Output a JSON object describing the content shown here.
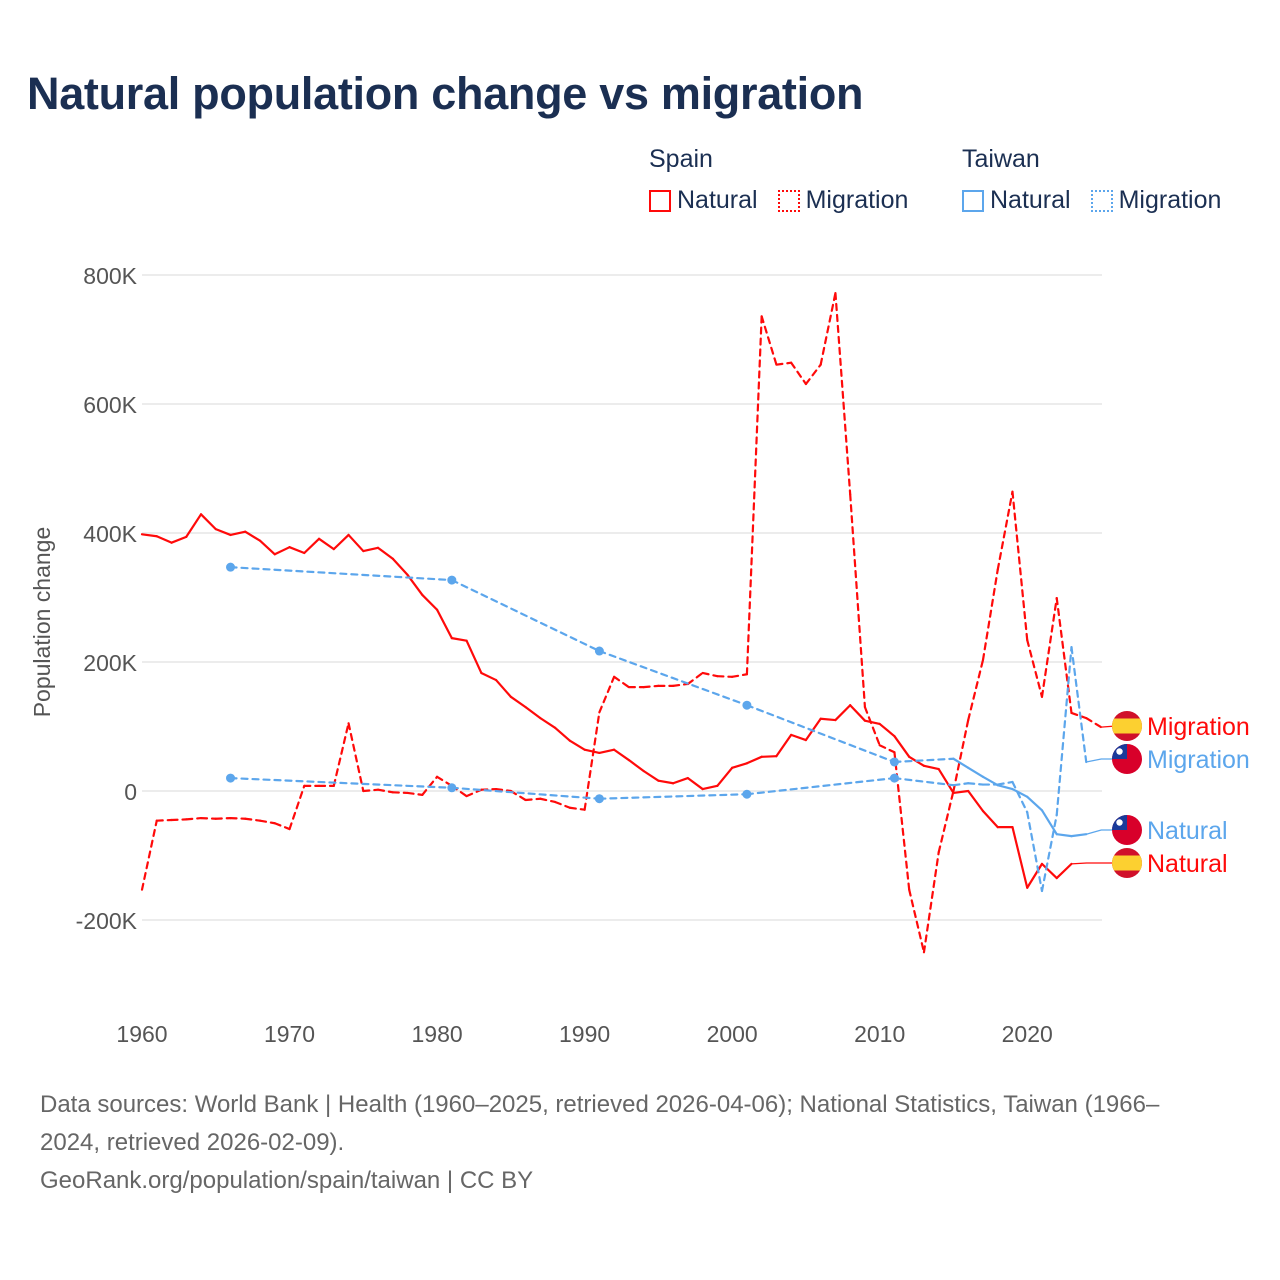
{
  "title": "Natural population change vs migration",
  "colors": {
    "spain": "#ff0a0a",
    "taiwan": "#5ca6ec",
    "title": "#1b2f52",
    "grid": "#e6e6e6",
    "axis_text": "#555555"
  },
  "legend": [
    {
      "group": "Spain",
      "color_key": "spain",
      "items": [
        {
          "label": "Natural",
          "style": "solid"
        },
        {
          "label": "Migration",
          "style": "dotted"
        }
      ]
    },
    {
      "group": "Taiwan",
      "color_key": "taiwan",
      "items": [
        {
          "label": "Natural",
          "style": "solid"
        },
        {
          "label": "Migration",
          "style": "dotted"
        }
      ]
    }
  ],
  "chart_data": {
    "type": "line",
    "title": "Natural population change vs migration",
    "xlabel": "",
    "ylabel": "Population change",
    "xlim": [
      1960,
      2025
    ],
    "ylim": [
      -300000,
      800000
    ],
    "x_ticks": [
      1960,
      1970,
      1980,
      1990,
      2000,
      2010,
      2020
    ],
    "x_tick_labels": [
      "1960",
      "1970",
      "1980",
      "1990",
      "2000",
      "2010",
      "2020"
    ],
    "y_ticks": [
      -200000,
      0,
      200000,
      400000,
      600000,
      800000
    ],
    "y_tick_labels": [
      "-200K",
      "0",
      "200K",
      "400K",
      "600K",
      "800K"
    ],
    "grid": true,
    "series": [
      {
        "name": "Spain Natural",
        "country": "Spain",
        "label": "Natural",
        "color_key": "spain",
        "dash": false,
        "flag": "spain",
        "points": [
          [
            1960,
            398000
          ],
          [
            1961,
            395000
          ],
          [
            1962,
            385000
          ],
          [
            1963,
            394000
          ],
          [
            1964,
            429000
          ],
          [
            1965,
            406000
          ],
          [
            1966,
            397000
          ],
          [
            1967,
            402000
          ],
          [
            1968,
            388000
          ],
          [
            1969,
            367000
          ],
          [
            1970,
            378000
          ],
          [
            1971,
            369000
          ],
          [
            1972,
            391000
          ],
          [
            1973,
            375000
          ],
          [
            1974,
            397000
          ],
          [
            1975,
            372000
          ],
          [
            1976,
            377000
          ],
          [
            1977,
            360000
          ],
          [
            1978,
            335000
          ],
          [
            1979,
            304000
          ],
          [
            1980,
            281000
          ],
          [
            1981,
            237000
          ],
          [
            1982,
            233000
          ],
          [
            1983,
            183000
          ],
          [
            1984,
            172000
          ],
          [
            1985,
            146000
          ],
          [
            1986,
            130000
          ],
          [
            1987,
            113000
          ],
          [
            1988,
            98000
          ],
          [
            1989,
            78000
          ],
          [
            1990,
            64000
          ],
          [
            1991,
            59000
          ],
          [
            1992,
            64000
          ],
          [
            1993,
            48000
          ],
          [
            1994,
            31000
          ],
          [
            1995,
            16000
          ],
          [
            1996,
            12000
          ],
          [
            1997,
            20000
          ],
          [
            1998,
            3000
          ],
          [
            1999,
            8000
          ],
          [
            2000,
            36000
          ],
          [
            2001,
            43000
          ],
          [
            2002,
            53000
          ],
          [
            2003,
            54000
          ],
          [
            2004,
            87000
          ],
          [
            2005,
            79000
          ],
          [
            2006,
            112000
          ],
          [
            2007,
            110000
          ],
          [
            2008,
            133000
          ],
          [
            2009,
            109000
          ],
          [
            2010,
            104000
          ],
          [
            2011,
            85000
          ],
          [
            2012,
            53000
          ],
          [
            2013,
            39000
          ],
          [
            2014,
            34000
          ],
          [
            2015,
            -3000
          ],
          [
            2016,
            0
          ],
          [
            2017,
            -31000
          ],
          [
            2018,
            -56000
          ],
          [
            2019,
            -56000
          ],
          [
            2020,
            -150000
          ],
          [
            2021,
            -113000
          ],
          [
            2022,
            -135000
          ],
          [
            2023,
            -113000
          ]
        ]
      },
      {
        "name": "Spain Migration",
        "country": "Spain",
        "label": "Migration",
        "color_key": "spain",
        "dash": true,
        "flag": "spain",
        "points": [
          [
            1960,
            -153000
          ],
          [
            1961,
            -46000
          ],
          [
            1962,
            -45000
          ],
          [
            1963,
            -44000
          ],
          [
            1964,
            -42000
          ],
          [
            1965,
            -43000
          ],
          [
            1966,
            -42000
          ],
          [
            1967,
            -43000
          ],
          [
            1968,
            -46000
          ],
          [
            1969,
            -50000
          ],
          [
            1970,
            -59000
          ],
          [
            1971,
            8000
          ],
          [
            1972,
            8000
          ],
          [
            1973,
            8000
          ],
          [
            1974,
            105000
          ],
          [
            1975,
            0
          ],
          [
            1976,
            2000
          ],
          [
            1977,
            -2000
          ],
          [
            1978,
            -3000
          ],
          [
            1979,
            -6000
          ],
          [
            1980,
            22000
          ],
          [
            1981,
            8000
          ],
          [
            1982,
            -8000
          ],
          [
            1983,
            2000
          ],
          [
            1984,
            3000
          ],
          [
            1985,
            0
          ],
          [
            1986,
            -14000
          ],
          [
            1987,
            -12000
          ],
          [
            1988,
            -17000
          ],
          [
            1989,
            -26000
          ],
          [
            1990,
            -29000
          ],
          [
            1991,
            122000
          ],
          [
            1992,
            177000
          ],
          [
            1993,
            161000
          ],
          [
            1994,
            161000
          ],
          [
            1995,
            163000
          ],
          [
            1996,
            163000
          ],
          [
            1997,
            166000
          ],
          [
            1998,
            183000
          ],
          [
            1999,
            178000
          ],
          [
            2000,
            177000
          ],
          [
            2001,
            181000
          ],
          [
            2002,
            736000
          ],
          [
            2003,
            661000
          ],
          [
            2004,
            664000
          ],
          [
            2005,
            631000
          ],
          [
            2006,
            661000
          ],
          [
            2007,
            772000
          ],
          [
            2008,
            460000
          ],
          [
            2009,
            130000
          ],
          [
            2010,
            71000
          ],
          [
            2011,
            60000
          ],
          [
            2012,
            -153000
          ],
          [
            2013,
            -250000
          ],
          [
            2014,
            -95000
          ],
          [
            2015,
            0
          ],
          [
            2016,
            110000
          ],
          [
            2017,
            203000
          ],
          [
            2018,
            343000
          ],
          [
            2019,
            464000
          ],
          [
            2020,
            234000
          ],
          [
            2021,
            146000
          ],
          [
            2022,
            299000
          ],
          [
            2023,
            121000
          ],
          [
            2024,
            113000
          ],
          [
            2025,
            99000
          ]
        ]
      },
      {
        "name": "Taiwan Natural",
        "country": "Taiwan",
        "label": "Natural",
        "color_key": "taiwan",
        "dash": false,
        "flag": "taiwan",
        "points": [
          [
            1966,
            347000
          ],
          [
            1981,
            327000
          ],
          [
            1991,
            217000
          ],
          [
            2001,
            133000
          ],
          [
            2011,
            45000
          ],
          [
            2015,
            50000
          ],
          [
            2016,
            36000
          ],
          [
            2017,
            22000
          ],
          [
            2018,
            9000
          ],
          [
            2019,
            3000
          ],
          [
            2020,
            -9000
          ],
          [
            2021,
            -30000
          ],
          [
            2022,
            -67000
          ],
          [
            2023,
            -70000
          ],
          [
            2024,
            -67000
          ]
        ]
      },
      {
        "name": "Taiwan Migration",
        "country": "Taiwan",
        "label": "Migration",
        "color_key": "taiwan",
        "dash": true,
        "flag": "taiwan",
        "points": [
          [
            1966,
            20000
          ],
          [
            1981,
            5000
          ],
          [
            1991,
            -12000
          ],
          [
            2001,
            -5000
          ],
          [
            2011,
            20000
          ],
          [
            2015,
            9000
          ],
          [
            2016,
            12000
          ],
          [
            2017,
            10000
          ],
          [
            2018,
            10000
          ],
          [
            2019,
            14000
          ],
          [
            2020,
            -33000
          ],
          [
            2021,
            -155000
          ],
          [
            2022,
            -37000
          ],
          [
            2023,
            223000
          ],
          [
            2024,
            45000
          ]
        ]
      }
    ],
    "end_labels": [
      {
        "series": "Spain Migration",
        "text": "Migration"
      },
      {
        "series": "Taiwan Migration",
        "text": "Migration"
      },
      {
        "series": "Taiwan Natural",
        "text": "Natural"
      },
      {
        "series": "Spain Natural",
        "text": "Natural"
      }
    ]
  },
  "footer": {
    "line1": "Data sources: World Bank | Health (1960–2025, retrieved 2026-04-06); National Statistics, Taiwan (1966–",
    "line2": "2024, retrieved 2026-02-09).",
    "line3": "GeoRank.org/population/spain/taiwan | CC BY"
  }
}
